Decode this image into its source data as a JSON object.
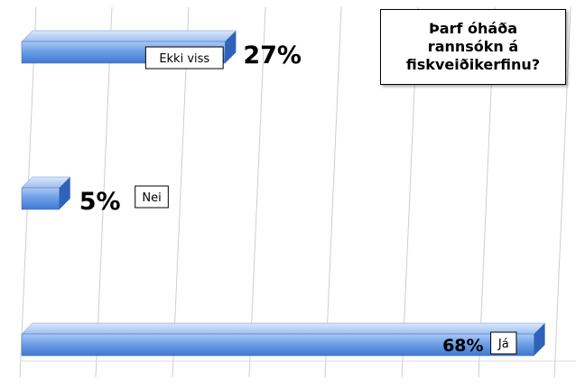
{
  "chart_data": {
    "type": "bar",
    "orientation": "horizontal",
    "title": "Þarf óháða rannsókn á fiskveiðikerfinu?",
    "categories": [
      "Ekki viss",
      "Nei",
      "Já"
    ],
    "values": [
      27,
      5,
      68
    ],
    "value_labels": [
      "27%",
      "5%",
      "68%"
    ],
    "xlim": [
      0,
      75
    ],
    "grid": true,
    "bar_color": "#6fa0e6",
    "bar_dark": "#2f62b8"
  }
}
